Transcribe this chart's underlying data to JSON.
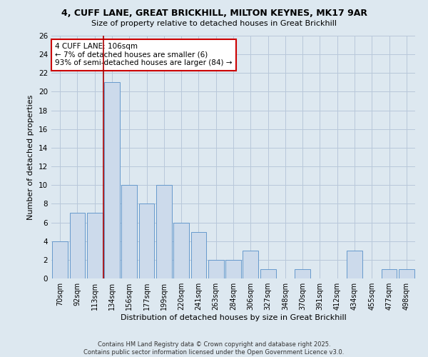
{
  "title_line1": "4, CUFF LANE, GREAT BRICKHILL, MILTON KEYNES, MK17 9AR",
  "title_line2": "Size of property relative to detached houses in Great Brickhill",
  "xlabel": "Distribution of detached houses by size in Great Brickhill",
  "ylabel": "Number of detached properties",
  "categories": [
    "70sqm",
    "92sqm",
    "113sqm",
    "134sqm",
    "156sqm",
    "177sqm",
    "199sqm",
    "220sqm",
    "241sqm",
    "263sqm",
    "284sqm",
    "306sqm",
    "327sqm",
    "348sqm",
    "370sqm",
    "391sqm",
    "412sqm",
    "434sqm",
    "455sqm",
    "477sqm",
    "498sqm"
  ],
  "values": [
    4,
    7,
    7,
    21,
    10,
    8,
    10,
    6,
    5,
    2,
    2,
    3,
    1,
    0,
    1,
    0,
    0,
    3,
    0,
    1,
    1
  ],
  "bar_color": "#ccdaeb",
  "bar_edge_color": "#6699cc",
  "grid_color": "#b8c8da",
  "background_color": "#dde8f0",
  "vline_x": 2.5,
  "vline_color": "#aa0000",
  "annotation_text": "4 CUFF LANE: 106sqm\n← 7% of detached houses are smaller (6)\n93% of semi-detached houses are larger (84) →",
  "annotation_box_facecolor": "#ffffff",
  "annotation_box_edgecolor": "#cc0000",
  "footer_line1": "Contains HM Land Registry data © Crown copyright and database right 2025.",
  "footer_line2": "Contains public sector information licensed under the Open Government Licence v3.0.",
  "ylim": [
    0,
    26
  ],
  "yticks": [
    0,
    2,
    4,
    6,
    8,
    10,
    12,
    14,
    16,
    18,
    20,
    22,
    24,
    26
  ]
}
